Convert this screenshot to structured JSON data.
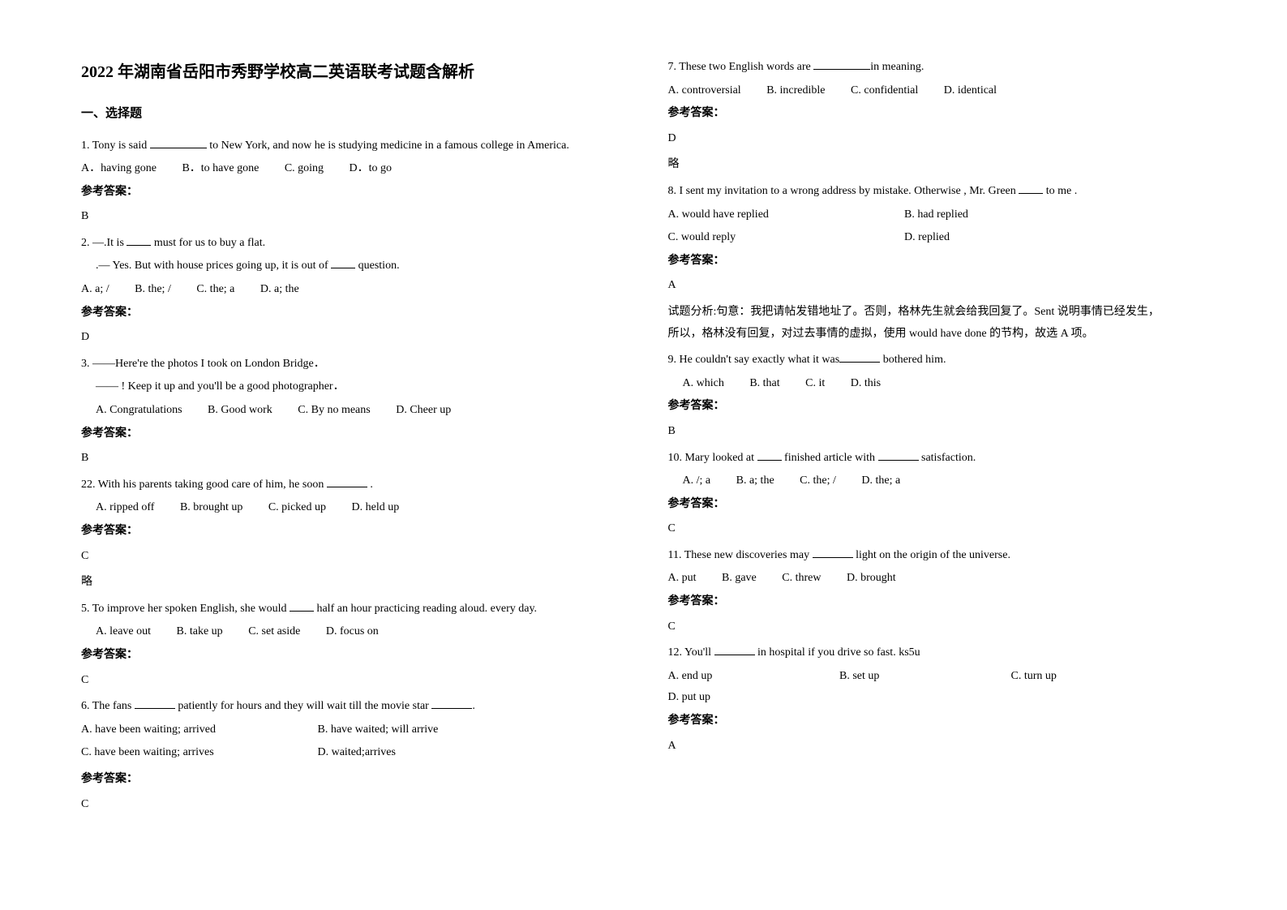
{
  "title": "2022 年湖南省岳阳市秀野学校高二英语联考试题含解析",
  "section1": "一、选择题",
  "answer_label": "参考答案：",
  "note_omit": "略",
  "q1": {
    "text_a": "1. Tony is said ",
    "text_b": " to New York, and now he is studying medicine in a famous college in America.",
    "A": "A．having gone",
    "B": "B．to have gone",
    "C": "C. going",
    "D": "D．to go",
    "ans": "B"
  },
  "q2": {
    "line1_a": "2. —.It is ",
    "line1_b": " must for us to buy a flat.",
    "line2_a": ".— Yes. But with house prices going up, it is out of ",
    "line2_b": " question.",
    "A": "A. a; /",
    "B": "B. the; /",
    "C": "C. the; a",
    "D": "D. a; the",
    "ans": "D"
  },
  "q3": {
    "line1": "3. ——Here're the photos I took on London Bridge．",
    "line2_a": "——        ",
    "line2_b": "! Keep it up and you'll be a good photographer．",
    "A": "A. Congratulations",
    "B": "B. Good work",
    "C": "C. By no means",
    "D": "D. Cheer up",
    "ans": "B"
  },
  "q4": {
    "text_a": "22. With his parents taking good care of him, he soon ",
    "text_b": " .",
    "A": "A. ripped off",
    "B": "B. brought up",
    "C": "C. picked up",
    "D": "D. held up",
    "ans": "C"
  },
  "q5": {
    "text_a": "5. To improve her spoken English, she would ",
    "text_b": " half an hour practicing reading aloud. every day.",
    "A": "A. leave out",
    "B": "B. take up",
    "C": "C. set aside",
    "D": "D. focus on",
    "ans": "C"
  },
  "q6": {
    "text_a": "6. The fans ",
    "text_b": " patiently for hours and they will wait till the movie star ",
    "text_c": ".",
    "A": "A. have been waiting; arrived",
    "B": "B. have waited; will arrive",
    "C": "C. have been waiting; arrives",
    "D": "D. waited;arrives",
    "ans": "C"
  },
  "q7": {
    "text_a": "7. These two English words are ",
    "text_b": "in meaning.",
    "A": "A. controversial",
    "B": "B. incredible",
    "C": "C. confidential",
    "D": "D. identical",
    "ans": "D"
  },
  "q8": {
    "text_a": "8. I sent my invitation to a wrong address by mistake. Otherwise , Mr. Green ",
    "text_b": " to me .",
    "A": "A. would have replied",
    "B": "B. had replied",
    "C": "C. would reply",
    "D": "D. replied",
    "ans": "A",
    "explain1": "试题分析:句意：我把请帖发错地址了。否则，格林先生就会给我回复了。Sent 说明事情已经发生，",
    "explain2": "所以，格林没有回复，对过去事情的虚拟，使用 would have done 的节构，故选 A 项。"
  },
  "q9": {
    "text_a": "9.      He couldn't say exactly what it was",
    "text_b": "   bothered him.",
    "A": "A. which",
    "B": "B. that",
    "C": "C. it",
    "D": "D. this",
    "ans": "B"
  },
  "q10": {
    "text_a": "10. Mary looked at ",
    "text_b": " finished article with ",
    "text_c": " satisfaction.",
    "A": "A.   /; a",
    "B": "B. a; the",
    "C": "C. the; /",
    "D": "D. the; a",
    "ans": "C"
  },
  "q11": {
    "text_a": "11. These new discoveries may ",
    "text_b": " light on the origin of the universe.",
    "A": "A. put",
    "B": "B. gave",
    "C": "C. threw",
    "D": "D. brought",
    "ans": "C"
  },
  "q12": {
    "text_a": "12. You'll ",
    "text_b": " in hospital if you drive so fast. ks5u",
    "A": "A. end up",
    "B": "B. set up",
    "C": "C. turn up",
    "D": "D. put up",
    "ans": "A"
  }
}
